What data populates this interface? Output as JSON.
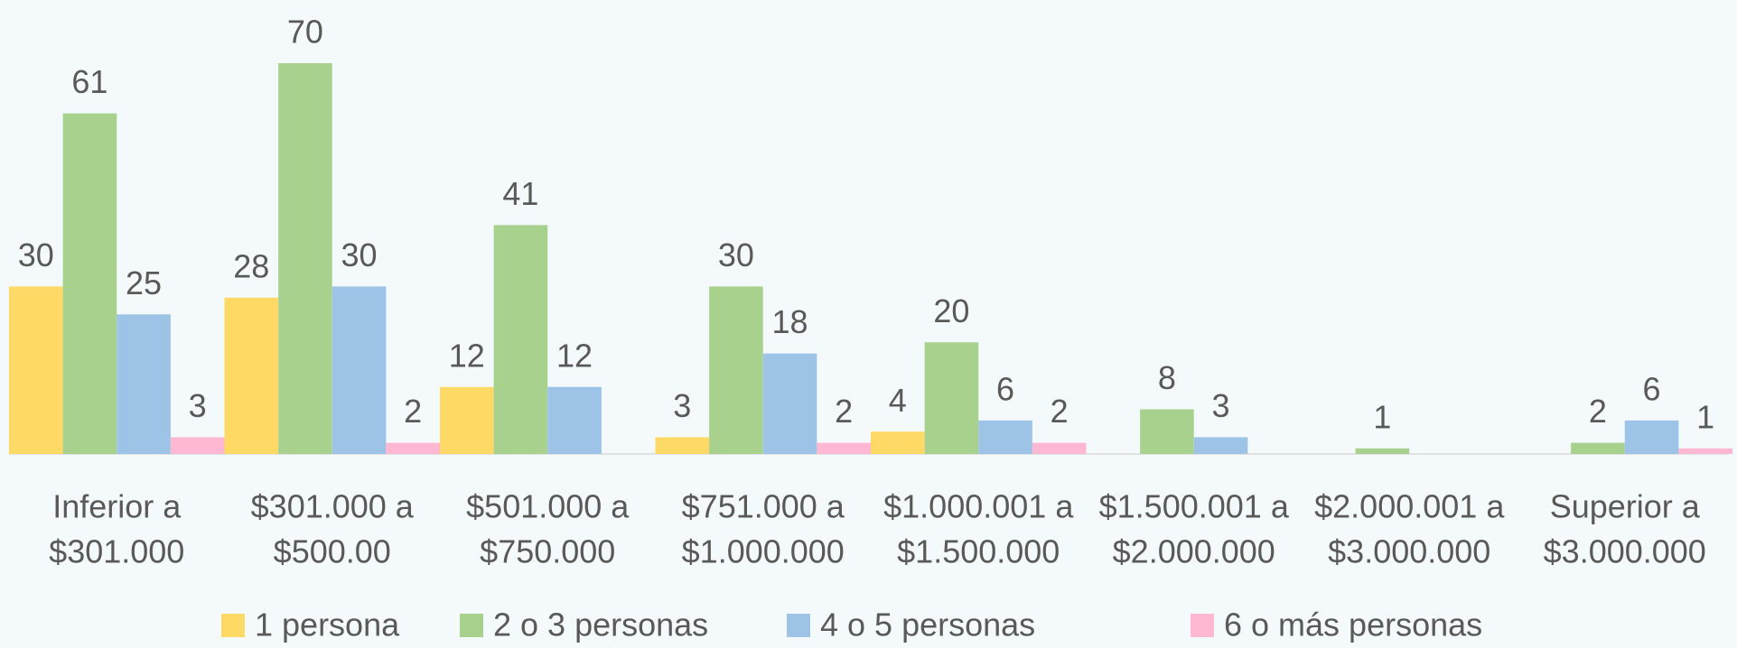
{
  "chart_data": {
    "type": "bar",
    "categories": [
      [
        "Inferior a",
        "$301.000"
      ],
      [
        "$301.000 a",
        "$500.00"
      ],
      [
        "$501.000 a",
        "$750.000"
      ],
      [
        "$751.000  a",
        "$1.000.000"
      ],
      [
        "$1.000.001 a",
        "$1.500.000"
      ],
      [
        "$1.500.001 a",
        "$2.000.000"
      ],
      [
        "$2.000.001 a",
        "$3.000.000"
      ],
      [
        "Superior a",
        "$3.000.000"
      ]
    ],
    "series": [
      {
        "name": "1 persona",
        "color": "#ffd966",
        "values": [
          30,
          28,
          12,
          3,
          4,
          null,
          null,
          null
        ]
      },
      {
        "name": "2 o 3 personas",
        "color": "#a9d18e",
        "values": [
          61,
          70,
          41,
          30,
          20,
          8,
          1,
          2
        ]
      },
      {
        "name": "4 o 5 personas",
        "color": "#9dc3e6",
        "values": [
          25,
          30,
          12,
          18,
          6,
          3,
          null,
          6
        ]
      },
      {
        "name": "6 o más personas",
        "color": "#ffb8d2",
        "values": [
          3,
          2,
          null,
          2,
          2,
          null,
          null,
          1
        ]
      }
    ],
    "legend": "bottom"
  }
}
